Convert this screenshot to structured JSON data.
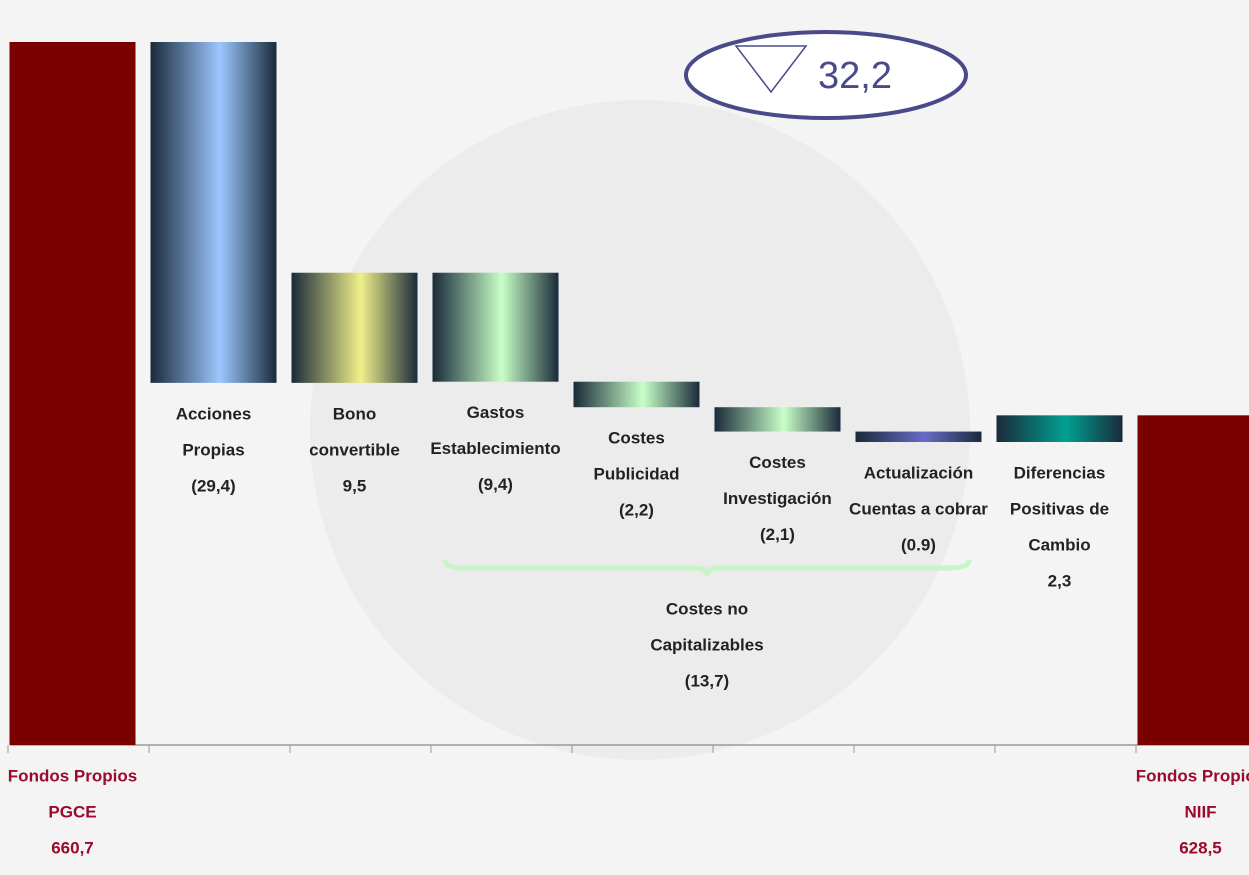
{
  "chart_data": {
    "type": "waterfall",
    "categories": [
      [
        "Fondos Propios",
        "PGCE"
      ],
      [
        "Acciones",
        "Propias"
      ],
      [
        "Bono",
        "convertible"
      ],
      [
        "Gastos",
        "Establecimiento"
      ],
      [
        "Costes",
        "Publicidad"
      ],
      [
        "Costes",
        "Investigación"
      ],
      [
        "Actualización",
        "Cuentas a cobrar"
      ],
      [
        "Diferencias",
        "Positivas de",
        "Cambio"
      ],
      [
        "Fondos Propios",
        "NIIF"
      ]
    ],
    "values": [
      660.7,
      -29.4,
      9.5,
      -9.4,
      -2.2,
      -2.1,
      -0.9,
      2.3,
      628.5
    ],
    "value_labels": [
      "660,7",
      "(29,4)",
      "9,5",
      "(9,4)",
      "(2,2)",
      "(2,1)",
      "(0.9)",
      "2,3",
      "628,5"
    ],
    "kinds": [
      "total",
      "delta",
      "delta",
      "delta",
      "delta",
      "delta",
      "delta",
      "delta",
      "total"
    ],
    "colors": [
      "#7a0000",
      "#9cc8ff",
      "#f0f08a",
      "#c8ffc8",
      "#c8ffc8",
      "#c8ffc8",
      "#6a6ac8",
      "#00a090",
      "#7a0000"
    ],
    "annotations": [
      {
        "lines": [
          "Costes no",
          "Capitalizables",
          "(13,7)"
        ],
        "from": 3,
        "to": 6
      }
    ],
    "summary_label": "32,2"
  }
}
